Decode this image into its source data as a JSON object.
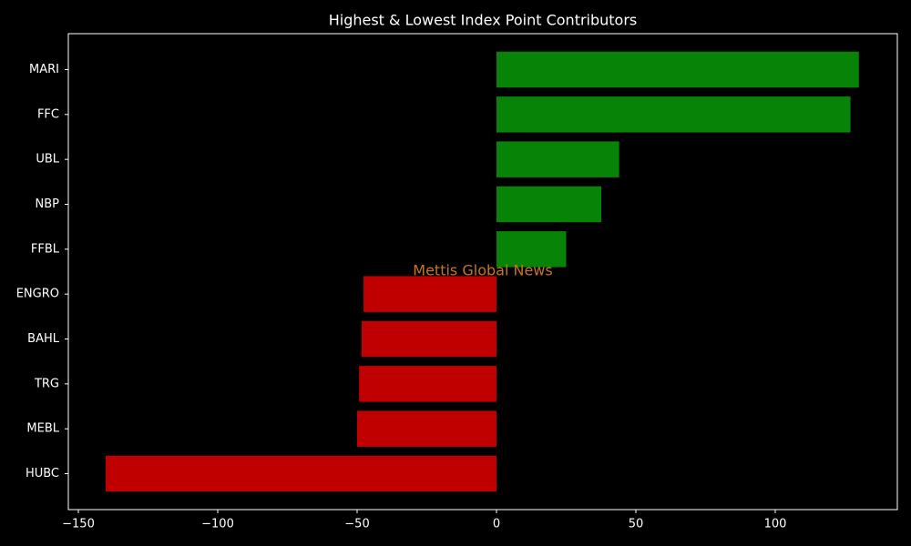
{
  "chart_data": {
    "type": "barh",
    "title": "Highest & Lowest Index Point Contributors",
    "annotation": "Mettis Global News",
    "categories": [
      "MARI",
      "FFC",
      "UBL",
      "NBP",
      "FFBL",
      "ENGRO",
      "BAHL",
      "TRG",
      "MEBL",
      "HUBC"
    ],
    "values": [
      130,
      127,
      44,
      37.6,
      25,
      -47.7,
      -48.4,
      -49.3,
      -50,
      -140.2
    ],
    "colors": [
      "#078307",
      "#078307",
      "#078307",
      "#078307",
      "#078307",
      "#c00000",
      "#c00000",
      "#c00000",
      "#c00000",
      "#c00000"
    ],
    "xlim": [
      -153.6,
      143.8
    ],
    "xticks": [
      {
        "value": -150,
        "label": "−150"
      },
      {
        "value": -100,
        "label": "−100"
      },
      {
        "value": -50,
        "label": "−50"
      },
      0,
      50,
      100
    ],
    "grid": false
  }
}
